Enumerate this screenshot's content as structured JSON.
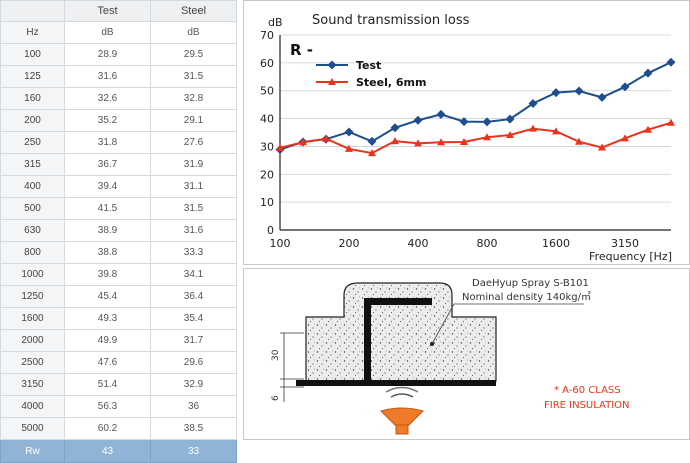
{
  "table": {
    "headers": [
      "",
      "Test",
      "Steel"
    ],
    "units": [
      "Hz",
      "dB",
      "dB"
    ],
    "rows": [
      [
        "100",
        "28.9",
        "29.5"
      ],
      [
        "125",
        "31.6",
        "31.5"
      ],
      [
        "160",
        "32.6",
        "32.8"
      ],
      [
        "200",
        "35.2",
        "29.1"
      ],
      [
        "250",
        "31.8",
        "27.6"
      ],
      [
        "315",
        "36.7",
        "31.9"
      ],
      [
        "400",
        "39.4",
        "31.1"
      ],
      [
        "500",
        "41.5",
        "31.5"
      ],
      [
        "630",
        "38.9",
        "31.6"
      ],
      [
        "800",
        "38.8",
        "33.3"
      ],
      [
        "1000",
        "39.8",
        "34.1"
      ],
      [
        "1250",
        "45.4",
        "36.4"
      ],
      [
        "1600",
        "49.3",
        "35.4"
      ],
      [
        "2000",
        "49.9",
        "31.7"
      ],
      [
        "2500",
        "47.6",
        "29.6"
      ],
      [
        "3150",
        "51.4",
        "32.9"
      ],
      [
        "4000",
        "56.3",
        "36"
      ],
      [
        "5000",
        "60.2",
        "38.5"
      ]
    ],
    "footer": [
      "Rw",
      "43",
      "33"
    ]
  },
  "chart_data": {
    "type": "line",
    "title": "Sound transmission loss",
    "label": "R -",
    "ylabel": "dB",
    "xlabel": "Frequency [Hz]",
    "x": [
      100,
      125,
      160,
      200,
      250,
      315,
      400,
      500,
      630,
      800,
      1000,
      1250,
      1600,
      2000,
      2500,
      3150,
      4000,
      5000
    ],
    "xticks": [
      "100",
      "200",
      "400",
      "800",
      "1600",
      "3150"
    ],
    "ylim": [
      0,
      70
    ],
    "yticks": [
      0,
      10,
      20,
      30,
      40,
      50,
      60,
      70
    ],
    "grid": "horizontal",
    "legend_position": "top-left",
    "series": [
      {
        "name": "Test",
        "color": "#1f4e8c",
        "marker": "diamond",
        "values": [
          28.9,
          31.6,
          32.6,
          35.2,
          31.8,
          36.7,
          39.4,
          41.5,
          38.9,
          38.8,
          39.8,
          45.4,
          49.3,
          49.9,
          47.6,
          51.4,
          56.3,
          60.2
        ]
      },
      {
        "name": "Steel, 6mm",
        "color": "#e8341c",
        "marker": "triangle",
        "values": [
          29.5,
          31.5,
          32.8,
          29.1,
          27.6,
          31.9,
          31.1,
          31.5,
          31.6,
          33.3,
          34.1,
          36.4,
          35.4,
          31.7,
          29.6,
          32.9,
          36,
          38.5
        ]
      }
    ]
  },
  "detail": {
    "product": "DaeHyup Spray S-B101",
    "density": "Nominal density 140kg/㎥",
    "dim_30": "30",
    "dim_6": "6",
    "class_line1": "* A-60 CLASS",
    "class_line2": "FIRE INSULATION",
    "colors": {
      "flame": "#ee7a2a",
      "note": "#e8341c"
    }
  }
}
